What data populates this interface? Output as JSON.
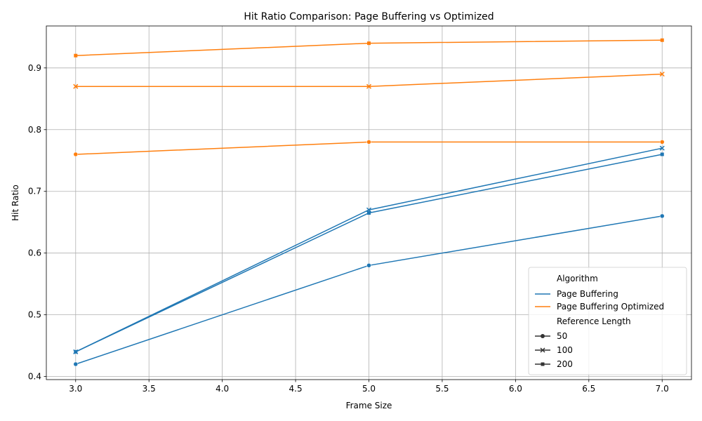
{
  "chart_data": {
    "type": "line",
    "title": "Hit Ratio Comparison: Page Buffering vs Optimized",
    "xlabel": "Frame Size",
    "ylabel": "Hit Ratio",
    "xlim": [
      2.8,
      7.2
    ],
    "ylim": [
      0.395,
      0.968
    ],
    "x_ticks": [
      "3.0",
      "3.5",
      "4.0",
      "4.5",
      "5.0",
      "5.5",
      "6.0",
      "6.5",
      "7.0"
    ],
    "y_ticks": [
      "0.4",
      "0.5",
      "0.6",
      "0.7",
      "0.8",
      "0.9"
    ],
    "grid": true,
    "legend_placement": "lower-right",
    "legend": {
      "hue_title": "Algorithm",
      "style_title": "Reference Length",
      "algorithms": [
        {
          "name": "Page Buffering",
          "color": "#1f77b4"
        },
        {
          "name": "Page Buffering Optimized",
          "color": "#ff7f0e"
        }
      ],
      "reference_lengths": [
        {
          "name": "50",
          "marker": "circle"
        },
        {
          "name": "100",
          "marker": "x"
        },
        {
          "name": "200",
          "marker": "square"
        }
      ]
    },
    "series": [
      {
        "algorithm": "Page Buffering",
        "reference_length": "50",
        "marker": "circle",
        "color": "#1f77b4",
        "x": [
          3,
          5,
          7
        ],
        "y": [
          0.42,
          0.58,
          0.66
        ]
      },
      {
        "algorithm": "Page Buffering",
        "reference_length": "100",
        "marker": "x",
        "color": "#1f77b4",
        "x": [
          3,
          5,
          7
        ],
        "y": [
          0.44,
          0.67,
          0.77
        ]
      },
      {
        "algorithm": "Page Buffering",
        "reference_length": "200",
        "marker": "square",
        "color": "#1f77b4",
        "x": [
          3,
          5,
          7
        ],
        "y": [
          0.44,
          0.665,
          0.76
        ]
      },
      {
        "algorithm": "Page Buffering Optimized",
        "reference_length": "50",
        "marker": "circle",
        "color": "#ff7f0e",
        "x": [
          3,
          5,
          7
        ],
        "y": [
          0.76,
          0.78,
          0.78
        ]
      },
      {
        "algorithm": "Page Buffering Optimized",
        "reference_length": "100",
        "marker": "x",
        "color": "#ff7f0e",
        "x": [
          3,
          5,
          7
        ],
        "y": [
          0.87,
          0.87,
          0.89
        ]
      },
      {
        "algorithm": "Page Buffering Optimized",
        "reference_length": "200",
        "marker": "square",
        "color": "#ff7f0e",
        "x": [
          3,
          5,
          7
        ],
        "y": [
          0.92,
          0.94,
          0.945
        ]
      }
    ]
  }
}
